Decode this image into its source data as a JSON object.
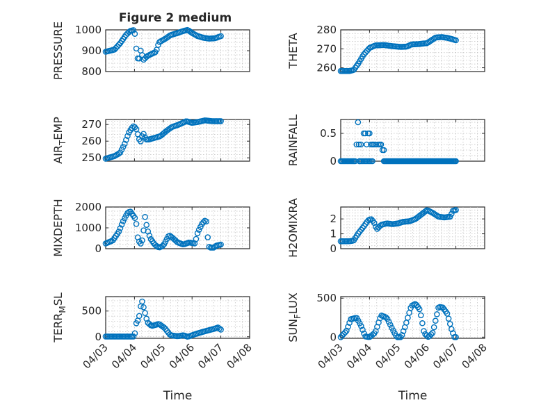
{
  "figure": {
    "title": "Figure 2 medium"
  },
  "chart_data": [
    {
      "type": "scatter",
      "ylabel": "PRESSURE",
      "xlabel": "",
      "xlim": [
        0,
        5
      ],
      "ylim": [
        800,
        1000
      ],
      "yticks": [
        800,
        900,
        1000
      ],
      "xticks": [
        0,
        1,
        2,
        3,
        4,
        5
      ],
      "xtick_labels": [
        "04/03",
        "04/04",
        "04/05",
        "04/06",
        "04/07",
        "04/08"
      ],
      "show_xtick_labels": false,
      "grid": true,
      "minor_grid": true,
      "anchors": [
        [
          0,
          895
        ],
        [
          0.3,
          905
        ],
        [
          0.5,
          935
        ],
        [
          0.7,
          975
        ],
        [
          0.85,
          995
        ],
        [
          1.0,
          1000
        ],
        [
          1.05,
          925
        ],
        [
          1.1,
          870
        ],
        [
          1.15,
          845
        ],
        [
          1.2,
          905
        ],
        [
          1.25,
          890
        ],
        [
          1.3,
          855
        ],
        [
          1.45,
          875
        ],
        [
          1.6,
          885
        ],
        [
          1.75,
          895
        ],
        [
          1.85,
          940
        ],
        [
          2.1,
          960
        ],
        [
          2.25,
          975
        ],
        [
          2.5,
          985
        ],
        [
          2.7,
          995
        ],
        [
          2.85,
          1000
        ],
        [
          3.0,
          985
        ],
        [
          3.2,
          970
        ],
        [
          3.4,
          962
        ],
        [
          3.6,
          958
        ],
        [
          3.8,
          960
        ],
        [
          4.0,
          970
        ]
      ],
      "samples": 80
    },
    {
      "type": "scatter",
      "ylabel": "THETA",
      "xlabel": "",
      "xlim": [
        0,
        5
      ],
      "ylim": [
        258,
        280
      ],
      "yticks": [
        260,
        270,
        280
      ],
      "xticks": [
        0,
        1,
        2,
        3,
        4,
        5
      ],
      "xtick_labels": [
        "04/03",
        "04/04",
        "04/05",
        "04/06",
        "04/07",
        "04/08"
      ],
      "show_xtick_labels": false,
      "grid": true,
      "minor_grid": true,
      "anchors": [
        [
          0,
          258.3
        ],
        [
          0.3,
          258.3
        ],
        [
          0.45,
          258.8
        ],
        [
          0.6,
          262
        ],
        [
          0.8,
          267
        ],
        [
          1.0,
          270.5
        ],
        [
          1.2,
          271.8
        ],
        [
          1.5,
          272
        ],
        [
          1.8,
          271.4
        ],
        [
          2.1,
          271
        ],
        [
          2.3,
          271.2
        ],
        [
          2.45,
          272.3
        ],
        [
          2.7,
          272.5
        ],
        [
          3.0,
          273
        ],
        [
          3.15,
          274.5
        ],
        [
          3.3,
          276
        ],
        [
          3.5,
          276.2
        ],
        [
          3.7,
          275.8
        ],
        [
          3.9,
          275
        ],
        [
          4.0,
          274.5
        ]
      ],
      "samples": 80
    },
    {
      "type": "scatter",
      "ylabel": "AIR_TEMP",
      "xlabel": "",
      "xlim": [
        0,
        5
      ],
      "ylim": [
        248,
        273
      ],
      "yticks": [
        250,
        260,
        270
      ],
      "xticks": [
        0,
        1,
        2,
        3,
        4,
        5
      ],
      "xtick_labels": [
        "04/03",
        "04/04",
        "04/05",
        "04/06",
        "04/07",
        "04/08"
      ],
      "show_xtick_labels": false,
      "grid": true,
      "minor_grid": true,
      "anchors": [
        [
          0,
          249.5
        ],
        [
          0.3,
          251
        ],
        [
          0.5,
          253
        ],
        [
          0.65,
          258
        ],
        [
          0.8,
          265
        ],
        [
          0.95,
          269
        ],
        [
          1.05,
          268
        ],
        [
          1.15,
          262
        ],
        [
          1.2,
          259
        ],
        [
          1.3,
          265
        ],
        [
          1.4,
          261
        ],
        [
          1.5,
          261
        ],
        [
          1.7,
          262
        ],
        [
          1.9,
          263
        ],
        [
          2.1,
          266
        ],
        [
          2.3,
          268.5
        ],
        [
          2.55,
          270
        ],
        [
          2.8,
          272
        ],
        [
          3.0,
          271
        ],
        [
          3.2,
          271.5
        ],
        [
          3.45,
          272.5
        ],
        [
          3.7,
          272
        ],
        [
          3.9,
          272
        ],
        [
          4.0,
          272
        ]
      ],
      "samples": 80
    },
    {
      "type": "scatter",
      "ylabel": "RAINFALL",
      "xlabel": "",
      "xlim": [
        0,
        5
      ],
      "ylim": [
        0,
        0.75
      ],
      "yticks": [
        0,
        0.5
      ],
      "xticks": [
        0,
        1,
        2,
        3,
        4,
        5
      ],
      "xtick_labels": [
        "04/03",
        "04/04",
        "04/05",
        "04/06",
        "04/07",
        "04/08"
      ],
      "show_xtick_labels": false,
      "grid": true,
      "minor_grid": true,
      "points": [
        [
          0.55,
          0.3
        ],
        [
          0.6,
          0.7
        ],
        [
          0.63,
          0.3
        ],
        [
          0.65,
          0
        ],
        [
          0.7,
          0.3
        ],
        [
          0.8,
          0.5
        ],
        [
          0.85,
          0.5
        ],
        [
          0.9,
          0.3
        ],
        [
          0.95,
          0.5
        ],
        [
          1.0,
          0.5
        ],
        [
          1.05,
          0.3
        ],
        [
          1.1,
          0.3
        ],
        [
          1.15,
          0.3
        ],
        [
          1.2,
          0.3
        ],
        [
          1.3,
          0.3
        ],
        [
          1.35,
          0.3
        ],
        [
          1.4,
          0.3
        ],
        [
          1.45,
          0.2
        ],
        [
          1.5,
          0.2
        ]
      ],
      "zero_ranges": [
        [
          0,
          0.5,
          12
        ],
        [
          0.65,
          1.1,
          10
        ],
        [
          1.5,
          4.0,
          70
        ]
      ]
    },
    {
      "type": "scatter",
      "ylabel": "MIXDEPTH",
      "xlabel": "",
      "xlim": [
        0,
        5
      ],
      "ylim": [
        0,
        2000
      ],
      "yticks": [
        0,
        1000,
        2000
      ],
      "xticks": [
        0,
        1,
        2,
        3,
        4,
        5
      ],
      "xtick_labels": [
        "04/03",
        "04/04",
        "04/05",
        "04/06",
        "04/07",
        "04/08"
      ],
      "show_xtick_labels": false,
      "grid": true,
      "minor_grid": true,
      "anchors": [
        [
          0,
          250
        ],
        [
          0.25,
          400
        ],
        [
          0.45,
          800
        ],
        [
          0.6,
          1300
        ],
        [
          0.75,
          1700
        ],
        [
          0.85,
          1800
        ],
        [
          0.95,
          1600
        ],
        [
          1.05,
          1400
        ],
        [
          1.1,
          600
        ],
        [
          1.2,
          200
        ],
        [
          1.3,
          500
        ],
        [
          1.35,
          1650
        ],
        [
          1.45,
          900
        ],
        [
          1.55,
          500
        ],
        [
          1.7,
          200
        ],
        [
          1.85,
          50
        ],
        [
          2.0,
          150
        ],
        [
          2.2,
          650
        ],
        [
          2.3,
          550
        ],
        [
          2.5,
          300
        ],
        [
          2.7,
          200
        ],
        [
          2.9,
          300
        ],
        [
          3.1,
          250
        ],
        [
          3.2,
          800
        ],
        [
          3.35,
          1200
        ],
        [
          3.45,
          1350
        ],
        [
          3.5,
          1300
        ],
        [
          3.55,
          450
        ],
        [
          3.6,
          50
        ],
        [
          3.75,
          50
        ],
        [
          3.85,
          150
        ],
        [
          4.0,
          200
        ]
      ],
      "samples": 80
    },
    {
      "type": "scatter",
      "ylabel": "H2OMIXRA",
      "xlabel": "",
      "xlim": [
        0,
        5
      ],
      "ylim": [
        0,
        2.8
      ],
      "yticks": [
        0,
        1,
        2
      ],
      "xticks": [
        0,
        1,
        2,
        3,
        4,
        5
      ],
      "xtick_labels": [
        "04/03",
        "04/04",
        "04/05",
        "04/06",
        "04/07",
        "04/08"
      ],
      "show_xtick_labels": false,
      "grid": true,
      "minor_grid": true,
      "anchors": [
        [
          0,
          0.5
        ],
        [
          0.3,
          0.5
        ],
        [
          0.45,
          0.55
        ],
        [
          0.6,
          1.0
        ],
        [
          0.8,
          1.5
        ],
        [
          0.95,
          1.9
        ],
        [
          1.05,
          2.0
        ],
        [
          1.15,
          1.8
        ],
        [
          1.25,
          1.3
        ],
        [
          1.4,
          1.6
        ],
        [
          1.6,
          1.7
        ],
        [
          1.8,
          1.65
        ],
        [
          2.0,
          1.7
        ],
        [
          2.15,
          1.8
        ],
        [
          2.4,
          1.85
        ],
        [
          2.6,
          2.0
        ],
        [
          2.8,
          2.3
        ],
        [
          3.0,
          2.6
        ],
        [
          3.2,
          2.4
        ],
        [
          3.4,
          2.15
        ],
        [
          3.6,
          2.1
        ],
        [
          3.8,
          2.15
        ],
        [
          3.9,
          2.55
        ],
        [
          4.0,
          2.6
        ]
      ],
      "samples": 80
    },
    {
      "type": "scatter",
      "ylabel": "TERR_MSL",
      "xlabel": "Time",
      "xlim": [
        0,
        5
      ],
      "ylim": [
        -30,
        780
      ],
      "yticks": [
        0,
        500
      ],
      "xticks": [
        0,
        1,
        2,
        3,
        4,
        5
      ],
      "xtick_labels": [
        "04/03",
        "04/04",
        "04/05",
        "04/06",
        "04/07",
        "04/08"
      ],
      "show_xtick_labels": true,
      "grid": true,
      "minor_grid": true,
      "anchors": [
        [
          0,
          5
        ],
        [
          0.5,
          5
        ],
        [
          1.0,
          5
        ],
        [
          1.05,
          250
        ],
        [
          1.15,
          350
        ],
        [
          1.25,
          720
        ],
        [
          1.35,
          500
        ],
        [
          1.45,
          280
        ],
        [
          1.6,
          210
        ],
        [
          1.85,
          250
        ],
        [
          2.05,
          170
        ],
        [
          2.25,
          30
        ],
        [
          2.5,
          10
        ],
        [
          2.7,
          30
        ],
        [
          2.85,
          0
        ],
        [
          3.1,
          50
        ],
        [
          3.4,
          100
        ],
        [
          3.6,
          130
        ],
        [
          3.8,
          160
        ],
        [
          3.9,
          180
        ],
        [
          4.0,
          140
        ]
      ],
      "samples": 80
    },
    {
      "type": "scatter",
      "ylabel": "SUN_FLUX",
      "xlabel": "Time",
      "xlim": [
        0,
        5
      ],
      "ylim": [
        -15,
        520
      ],
      "yticks": [
        0,
        500
      ],
      "xticks": [
        0,
        1,
        2,
        3,
        4,
        5
      ],
      "xtick_labels": [
        "04/03",
        "04/04",
        "04/05",
        "04/06",
        "04/07",
        "04/08"
      ],
      "show_xtick_labels": true,
      "grid": true,
      "minor_grid": true,
      "anchors": [
        [
          0,
          0
        ],
        [
          0.2,
          80
        ],
        [
          0.35,
          230
        ],
        [
          0.55,
          250
        ],
        [
          0.7,
          150
        ],
        [
          0.85,
          10
        ],
        [
          1.0,
          0
        ],
        [
          1.2,
          60
        ],
        [
          1.4,
          280
        ],
        [
          1.6,
          250
        ],
        [
          1.8,
          100
        ],
        [
          1.95,
          0
        ],
        [
          2.1,
          0
        ],
        [
          2.25,
          150
        ],
        [
          2.45,
          400
        ],
        [
          2.6,
          430
        ],
        [
          2.75,
          350
        ],
        [
          2.9,
          50
        ],
        [
          3.05,
          0
        ],
        [
          3.2,
          60
        ],
        [
          3.4,
          390
        ],
        [
          3.55,
          380
        ],
        [
          3.7,
          300
        ],
        [
          3.85,
          100
        ],
        [
          3.95,
          0
        ],
        [
          4.0,
          0
        ]
      ],
      "samples": 80
    }
  ]
}
